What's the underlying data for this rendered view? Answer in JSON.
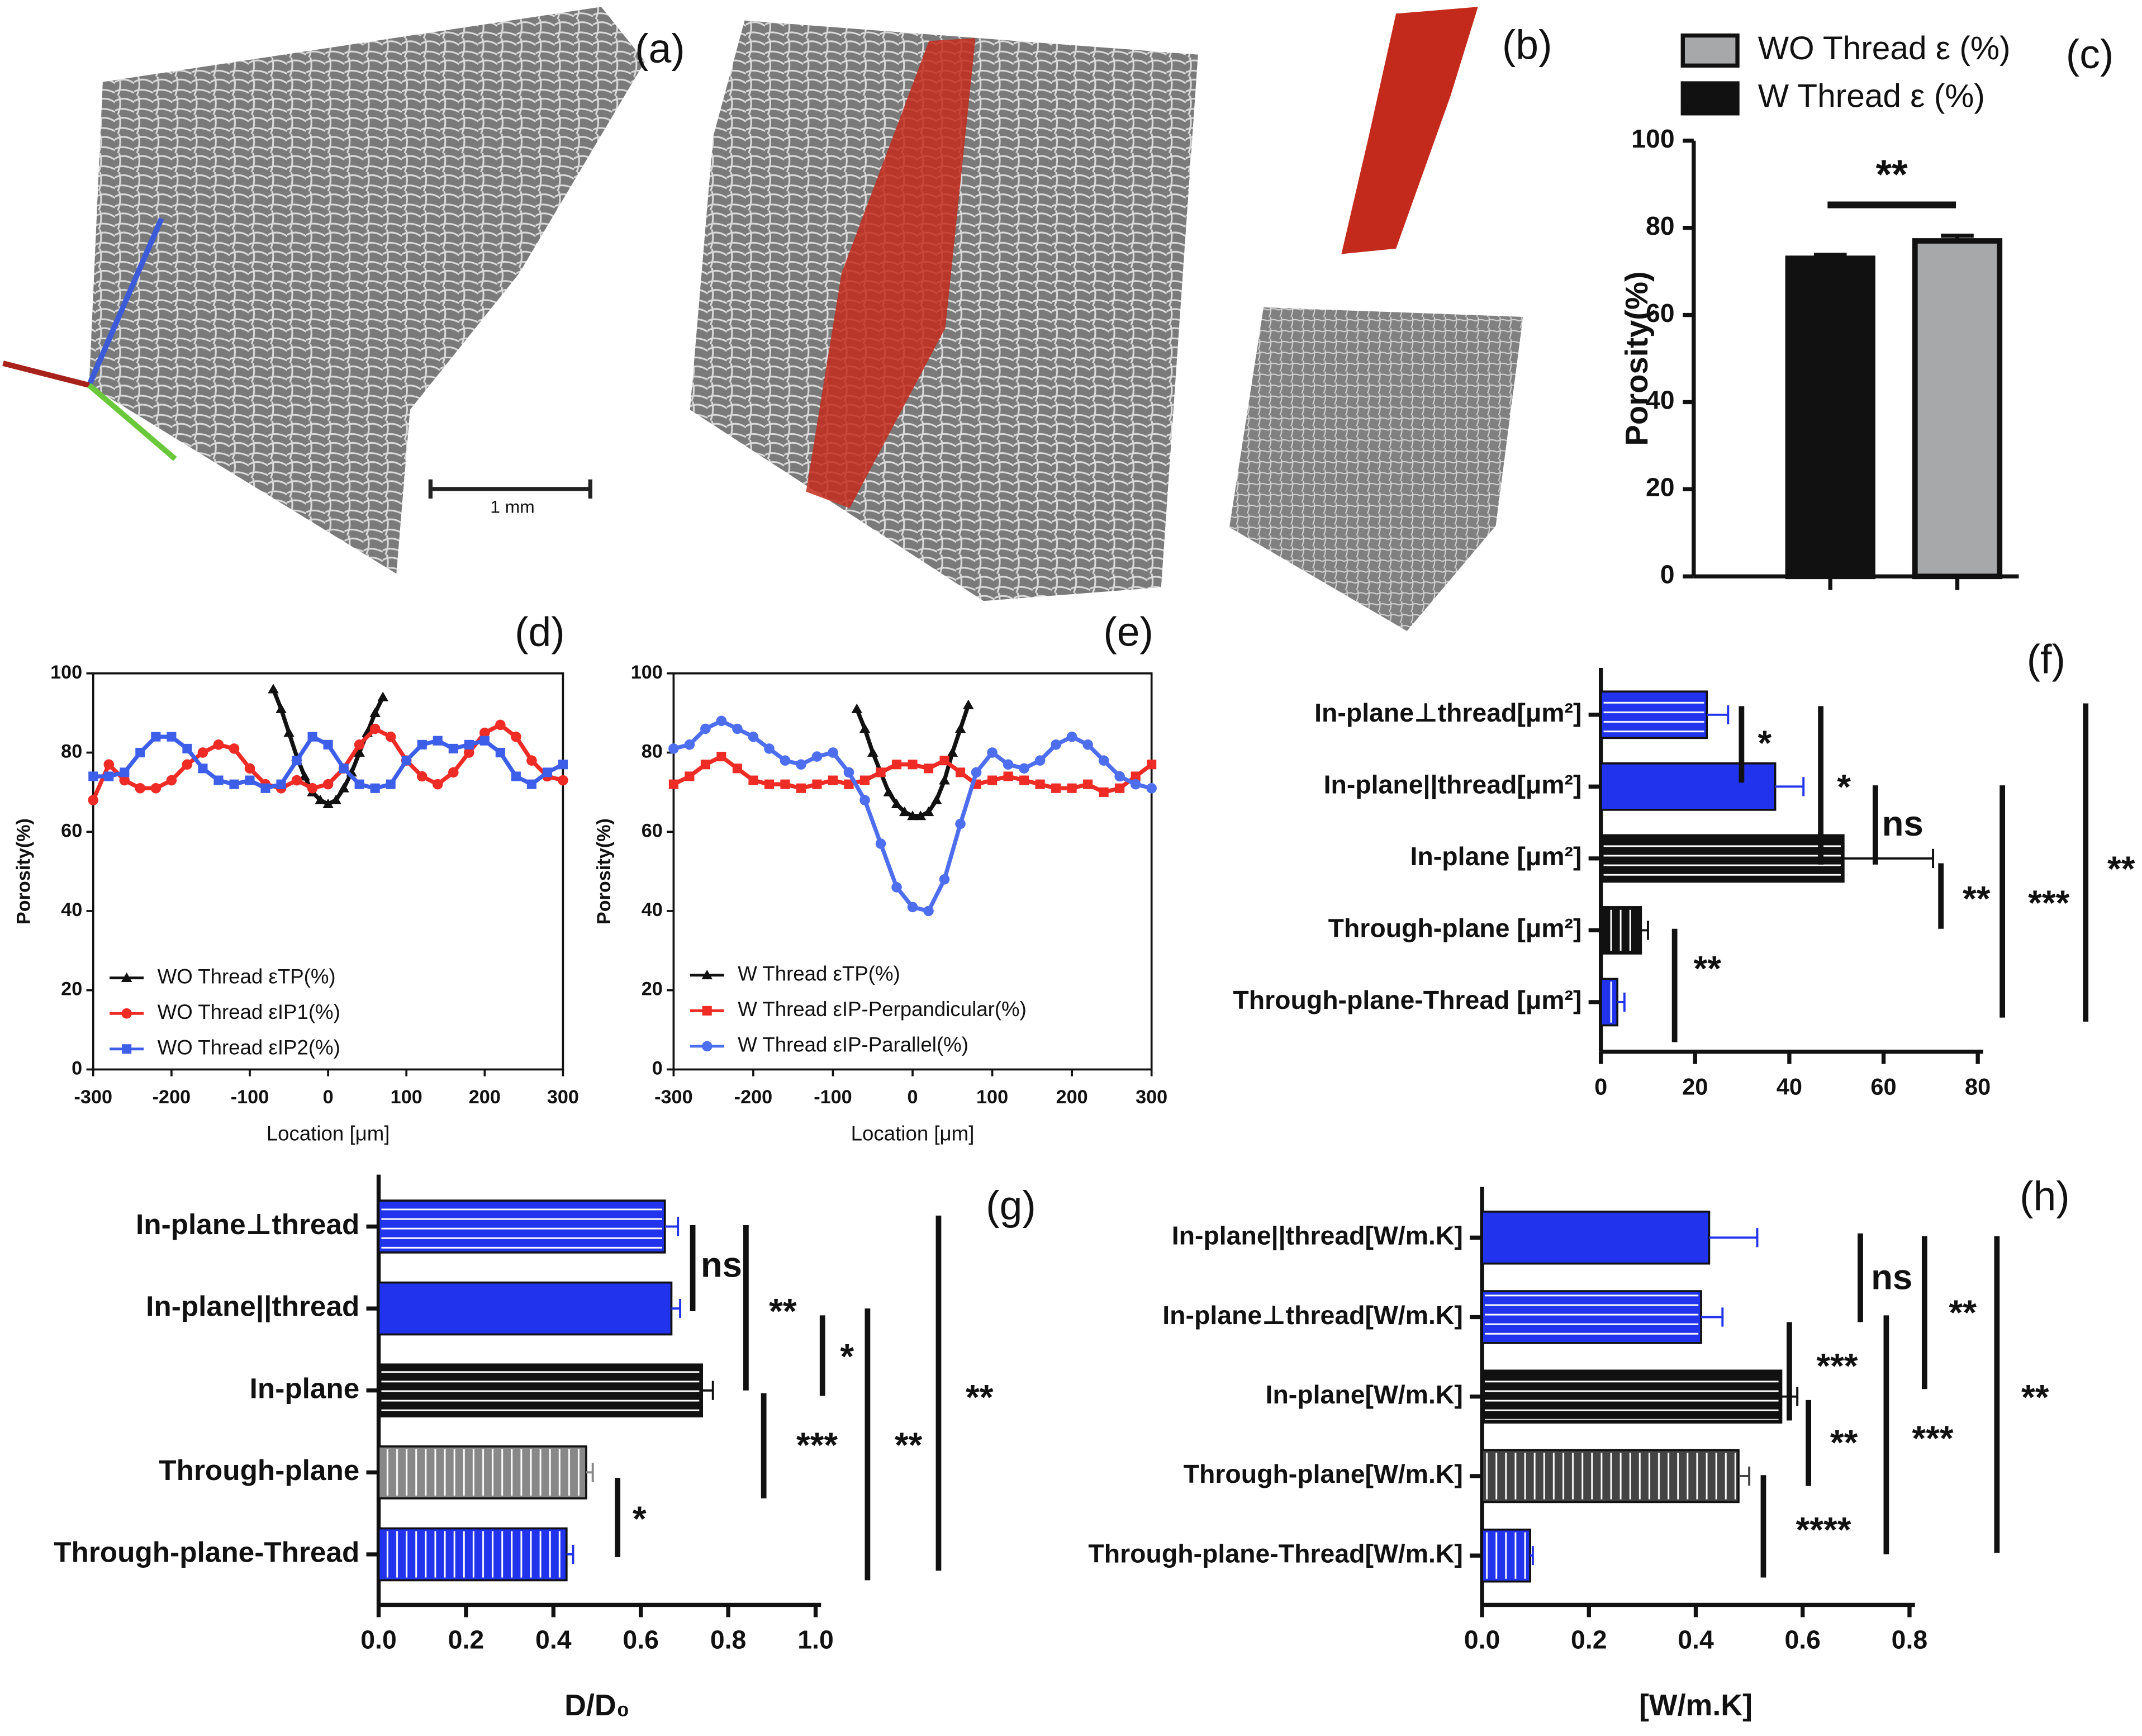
{
  "images": {
    "a": {
      "panel_label": "(a)",
      "scale_bar": "1 mm"
    },
    "b": {
      "panel_label": "(b)"
    }
  },
  "chart_data": [
    {
      "type": "bar",
      "panel_label": "(c)",
      "ylabel": "Porosity(%)",
      "categories": [
        null,
        null
      ],
      "series": [
        {
          "name": "WO Thread ε (%)",
          "color": "#a6a8aa",
          "values": [
            null,
            77
          ],
          "errors": [
            null,
            1.2
          ]
        },
        {
          "name": "W Thread ε (%)",
          "color": "#111111",
          "values": [
            73,
            null
          ],
          "errors": [
            0.8,
            null
          ]
        }
      ],
      "ylim": [
        0,
        100
      ],
      "yticks": [
        0,
        20,
        40,
        60,
        80,
        100
      ],
      "annotations": [
        "**"
      ]
    },
    {
      "type": "line",
      "panel_label": "(d)",
      "xlabel": "Location [μm]",
      "ylabel": "Porosity(%)",
      "xlim": [
        -300,
        300
      ],
      "xticks": [
        -300,
        -200,
        -100,
        0,
        100,
        200,
        300
      ],
      "ylim": [
        0,
        100
      ],
      "yticks": [
        0,
        20,
        40,
        60,
        80,
        100
      ],
      "series": [
        {
          "name": "WO Thread εTP(%)",
          "color": "#111111",
          "marker": "triangle",
          "x": [
            -70,
            -60,
            -50,
            -40,
            -30,
            -20,
            -10,
            0,
            10,
            20,
            30,
            40,
            50,
            60,
            70
          ],
          "values": [
            96,
            91,
            85,
            79,
            74,
            70,
            68,
            67,
            68,
            71,
            75,
            80,
            85,
            90,
            94
          ]
        },
        {
          "name": "WO Thread εIP1(%)",
          "color": "#ee2b24",
          "marker": "circle",
          "x": [
            -300,
            -280,
            -260,
            -240,
            -220,
            -200,
            -180,
            -160,
            -140,
            -120,
            -100,
            -80,
            -60,
            -40,
            -20,
            0,
            20,
            40,
            60,
            80,
            100,
            120,
            140,
            160,
            180,
            200,
            220,
            240,
            260,
            280,
            300
          ],
          "values": [
            68,
            77,
            73,
            71,
            71,
            73,
            77,
            80,
            82,
            81,
            76,
            72,
            71,
            73,
            71,
            72,
            76,
            82,
            86,
            84,
            78,
            74,
            72,
            75,
            80,
            85,
            87,
            84,
            78,
            74,
            73
          ]
        },
        {
          "name": "WO Thread εIP2(%)",
          "color": "#3d5ee8",
          "marker": "square",
          "x": [
            -300,
            -280,
            -260,
            -240,
            -220,
            -200,
            -180,
            -160,
            -140,
            -120,
            -100,
            -80,
            -60,
            -40,
            -20,
            0,
            20,
            40,
            60,
            80,
            100,
            120,
            140,
            160,
            180,
            200,
            220,
            240,
            260,
            280,
            300
          ],
          "values": [
            74,
            74,
            75,
            80,
            84,
            84,
            81,
            76,
            73,
            72,
            73,
            71,
            72,
            78,
            84,
            82,
            76,
            72,
            71,
            72,
            78,
            82,
            83,
            81,
            82,
            83,
            80,
            74,
            72,
            75,
            77
          ]
        }
      ]
    },
    {
      "type": "line",
      "panel_label": "(e)",
      "xlabel": "Location [μm]",
      "ylabel": "Porosity(%)",
      "xlim": [
        -300,
        300
      ],
      "xticks": [
        -300,
        -200,
        -100,
        0,
        100,
        200,
        300
      ],
      "ylim": [
        0,
        100
      ],
      "yticks": [
        0,
        20,
        40,
        60,
        80,
        100
      ],
      "series": [
        {
          "name": "W Thread εTP(%)",
          "color": "#111111",
          "marker": "triangle",
          "x": [
            -70,
            -60,
            -50,
            -40,
            -30,
            -20,
            -10,
            0,
            10,
            20,
            30,
            40,
            50,
            60,
            70
          ],
          "values": [
            91,
            86,
            80,
            75,
            70,
            67,
            65,
            64,
            64,
            65,
            68,
            73,
            80,
            86,
            92
          ]
        },
        {
          "name": "W Thread εIP-Perpandicular(%)",
          "color": "#ee2b24",
          "marker": "square",
          "x": [
            -300,
            -280,
            -260,
            -240,
            -220,
            -200,
            -180,
            -160,
            -140,
            -120,
            -100,
            -80,
            -60,
            -40,
            -20,
            0,
            20,
            40,
            60,
            80,
            100,
            120,
            140,
            160,
            180,
            200,
            220,
            240,
            260,
            280,
            300
          ],
          "values": [
            72,
            74,
            77,
            79,
            76,
            73,
            72,
            72,
            71,
            72,
            73,
            72,
            73,
            75,
            77,
            77,
            76,
            78,
            75,
            72,
            73,
            74,
            73,
            72,
            71,
            71,
            72,
            70,
            71,
            74,
            77
          ]
        },
        {
          "name": "W Thread εIP-Parallel(%)",
          "color": "#4e6ef0",
          "marker": "circle",
          "x": [
            -300,
            -280,
            -260,
            -240,
            -220,
            -200,
            -180,
            -160,
            -140,
            -120,
            -100,
            -80,
            -60,
            -40,
            -20,
            0,
            20,
            40,
            60,
            80,
            100,
            120,
            140,
            160,
            180,
            200,
            220,
            240,
            260,
            280,
            300
          ],
          "values": [
            81,
            82,
            86,
            88,
            86,
            84,
            81,
            78,
            77,
            79,
            80,
            75,
            68,
            57,
            46,
            41,
            40,
            48,
            62,
            75,
            80,
            77,
            76,
            78,
            82,
            84,
            82,
            78,
            74,
            72,
            71
          ]
        }
      ]
    },
    {
      "type": "hbar",
      "panel_label": "(f)",
      "categories": [
        "In-plane⊥thread[μm²]",
        "In-plane||thread[μm²]",
        "In-plane [μm²]",
        "Through-plane [μm²]",
        "Through-plane-Thread [μm²]"
      ],
      "values": [
        22.5,
        37,
        51.5,
        8.5,
        3.5
      ],
      "errors": [
        4.5,
        6,
        19,
        1.5,
        1.5
      ],
      "colors": [
        "#2233ee",
        "#2233ee",
        "#111111",
        "#111111",
        "#2233ee"
      ],
      "hatch": [
        "horizontal",
        "none",
        "horizontal",
        "vertical",
        "vertical"
      ],
      "xlim": [
        0,
        80
      ],
      "xticks": [
        0,
        20,
        40,
        60,
        80
      ],
      "annotations": [
        "*",
        "*",
        "ns",
        "**",
        "***",
        "**",
        "**"
      ]
    },
    {
      "type": "hbar",
      "panel_label": "(g)",
      "xlabel": "D/D₀",
      "categories": [
        "In-plane⊥thread",
        "In-plane||thread",
        "In-plane",
        "Through-plane",
        "Through-plane-Thread"
      ],
      "values": [
        0.655,
        0.67,
        0.74,
        0.475,
        0.43
      ],
      "errors": [
        0.03,
        0.02,
        0.025,
        0.015,
        0.015
      ],
      "colors": [
        "#2233ee",
        "#2233ee",
        "#111111",
        "#888888",
        "#2233ee"
      ],
      "hatch": [
        "horizontal",
        "none",
        "horizontal",
        "vertical",
        "vertical"
      ],
      "xlim": [
        0,
        1.0
      ],
      "xticks": [
        {
          "value": 0,
          "label": "0.0"
        },
        0.2,
        0.4,
        0.6,
        0.8,
        {
          "value": 1,
          "label": "1.0"
        }
      ],
      "annotations": [
        "ns",
        "**",
        "*",
        "***",
        "**",
        "**",
        "*"
      ]
    },
    {
      "type": "hbar",
      "panel_label": "(h)",
      "xlabel": "[W/m.K]",
      "categories": [
        "In-plane||thread[W/m.K]",
        "In-plane⊥thread[W/m.K]",
        "In-plane[W/m.K]",
        "Through-plane[W/m.K]",
        "Through-plane-Thread[W/m.K]"
      ],
      "values": [
        0.425,
        0.41,
        0.56,
        0.48,
        0.09
      ],
      "errors": [
        0.09,
        0.04,
        0.03,
        0.02,
        0.005
      ],
      "colors": [
        "#2233ee",
        "#2233ee",
        "#111111",
        "#444444",
        "#2233ee"
      ],
      "hatch": [
        "none",
        "horizontal",
        "horizontal",
        "vertical",
        "vertical"
      ],
      "xlim": [
        0,
        0.8
      ],
      "xticks": [
        {
          "value": 0,
          "label": "0.0"
        },
        0.2,
        0.4,
        0.6,
        0.8
      ],
      "annotations": [
        "ns",
        "**",
        "***",
        "**",
        "***",
        "****",
        "**"
      ]
    }
  ]
}
